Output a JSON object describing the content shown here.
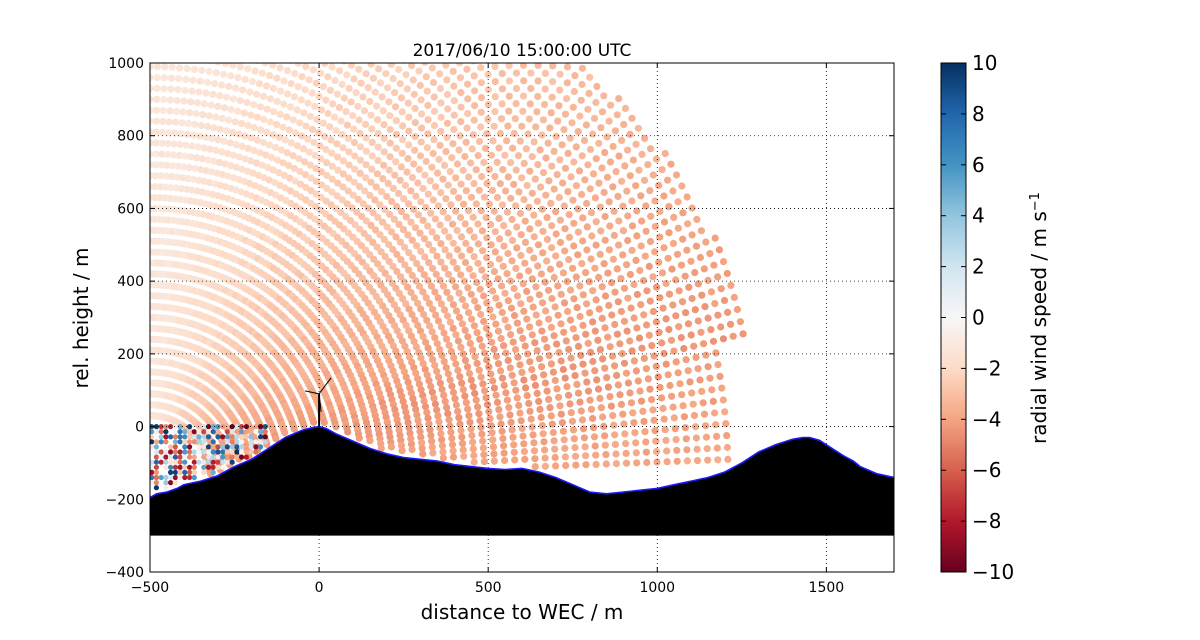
{
  "chart_data": {
    "type": "scatter",
    "title": "2017/06/10 15:00:00 UTC",
    "xlabel": "distance to WEC / m",
    "ylabel": "rel. height / m",
    "xlim": [
      -500,
      1700
    ],
    "ylim": [
      -400,
      1000
    ],
    "xticks": [
      -500,
      0,
      500,
      1000,
      1500
    ],
    "yticks": [
      -400,
      -200,
      0,
      200,
      400,
      600,
      800,
      1000
    ],
    "xtick_labels": [
      "−500",
      "0",
      "500",
      "1000",
      "1500"
    ],
    "ytick_labels": [
      "−400",
      "−200",
      "0",
      "200",
      "400",
      "600",
      "800",
      "1000"
    ],
    "grid": true,
    "colorbar": {
      "label_main": "radial wind speed / m s",
      "label_exp": "−1",
      "range": [
        -10,
        10
      ],
      "ticks": [
        10,
        8,
        6,
        4,
        2,
        0,
        -2,
        -4,
        -6,
        -8,
        -10
      ],
      "tick_labels": [
        "10",
        "8",
        "6",
        "4",
        "2",
        "0",
        "−2",
        "−4",
        "−6",
        "−8",
        "−10"
      ],
      "colormap": "RdBu"
    },
    "scan": {
      "origin_x": -500,
      "origin_y": -150,
      "min_range": 180,
      "max_range_near": 1380,
      "max_range_far": 1830,
      "elevation_min_deg": 2,
      "elevation_max_deg": 90,
      "typical_speed": -3.5
    },
    "terrain": {
      "x": [
        -500,
        -480,
        -450,
        -420,
        -400,
        -350,
        -300,
        -250,
        -200,
        -150,
        -100,
        -50,
        -20,
        0,
        20,
        50,
        100,
        150,
        200,
        250,
        300,
        350,
        400,
        450,
        500,
        550,
        600,
        650,
        700,
        750,
        800,
        850,
        900,
        950,
        1000,
        1050,
        1100,
        1150,
        1200,
        1250,
        1300,
        1350,
        1400,
        1430,
        1450,
        1480,
        1500,
        1550,
        1580,
        1600,
        1650,
        1700
      ],
      "y": [
        -195,
        -185,
        -180,
        -170,
        -160,
        -150,
        -135,
        -110,
        -90,
        -60,
        -30,
        -10,
        -3,
        0,
        -5,
        -20,
        -40,
        -60,
        -75,
        -85,
        -90,
        -95,
        -105,
        -110,
        -115,
        -118,
        -115,
        -125,
        -140,
        -160,
        -180,
        -185,
        -180,
        -175,
        -170,
        -160,
        -150,
        -140,
        -125,
        -100,
        -70,
        -50,
        -35,
        -30,
        -30,
        -38,
        -50,
        -80,
        -95,
        -110,
        -130,
        -140
      ],
      "base": -300,
      "fill_color": "#000000",
      "edge_color": "#1a1aff"
    },
    "turbine": {
      "x": 0,
      "base": 0,
      "hub": 90
    }
  }
}
